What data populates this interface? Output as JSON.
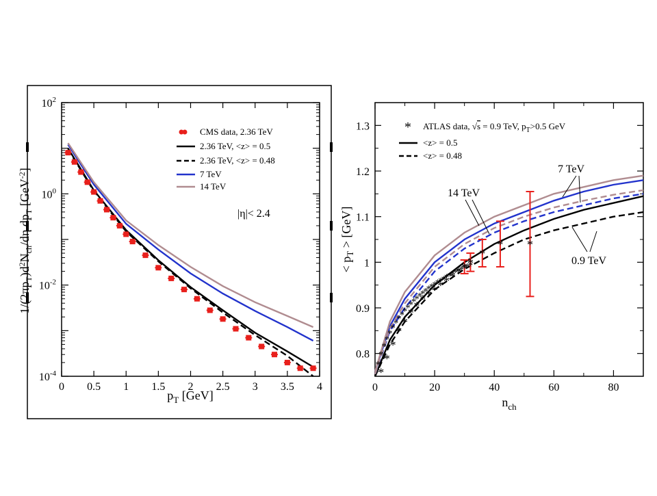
{
  "chart_data": [
    {
      "type": "line",
      "xlabel": "p_T [GeV]",
      "ylabel": "1/(2πp_T)d²N_ch/dη dp_T [GeV⁻²]",
      "xlim": [
        0,
        4
      ],
      "ylim": [
        0.0001,
        100
      ],
      "yscale": "log",
      "x_ticks": [
        "0",
        "0.5",
        "1",
        "1.5",
        "2",
        "2.5",
        "3",
        "3.5",
        "4"
      ],
      "y_ticks": [
        "10^-4",
        "10^-2",
        "10^0",
        "10^2"
      ],
      "annotation": "|η|< 2.4",
      "legend_position": "top-right",
      "legend": [
        {
          "label": "CMS data, 2.36 TeV",
          "color": "#e8201c",
          "style": "marker"
        },
        {
          "label": "2.36 TeV, <z> = 0.5",
          "color": "#000000",
          "style": "solid"
        },
        {
          "label": "2.36 TeV, <z> = 0.48",
          "color": "#000000",
          "style": "dashed"
        },
        {
          "label": "7 TeV",
          "color": "#2233cc",
          "style": "solid"
        },
        {
          "label": "14 TeV",
          "color": "#b08c90",
          "style": "solid"
        }
      ],
      "series": [
        {
          "name": "CMS data, 2.36 TeV",
          "kind": "points",
          "color": "#e8201c",
          "x": [
            0.1,
            0.2,
            0.3,
            0.4,
            0.5,
            0.6,
            0.7,
            0.8,
            0.9,
            1.0,
            1.1,
            1.3,
            1.5,
            1.7,
            1.9,
            2.1,
            2.3,
            2.5,
            2.7,
            2.9,
            3.1,
            3.3,
            3.5,
            3.7,
            3.9
          ],
          "y": [
            8,
            5,
            3,
            1.8,
            1.1,
            0.7,
            0.45,
            0.3,
            0.2,
            0.13,
            0.09,
            0.045,
            0.024,
            0.014,
            0.008,
            0.005,
            0.0028,
            0.0018,
            0.0011,
            0.0007,
            0.00045,
            0.0003,
            0.0002,
            0.00015,
            0.00015
          ]
        },
        {
          "name": "2.36 TeV, <z> = 0.5",
          "kind": "solid",
          "color": "#000000",
          "x": [
            0.1,
            0.5,
            1.0,
            1.5,
            2.0,
            2.5,
            3.0,
            3.5,
            3.9
          ],
          "y": [
            10,
            1.2,
            0.16,
            0.035,
            0.009,
            0.0028,
            0.0009,
            0.00035,
            0.00016
          ]
        },
        {
          "name": "2.36 TeV, <z> = 0.48",
          "kind": "dashed",
          "color": "#000000",
          "x": [
            0.1,
            0.5,
            1.0,
            1.5,
            2.0,
            2.5,
            3.0,
            3.5,
            3.9
          ],
          "y": [
            9.5,
            1.15,
            0.15,
            0.033,
            0.0085,
            0.0025,
            0.0008,
            0.00028,
            0.0001
          ]
        },
        {
          "name": "7 TeV",
          "kind": "solid",
          "color": "#2233cc",
          "x": [
            0.1,
            0.5,
            1.0,
            1.5,
            2.0,
            2.5,
            3.0,
            3.5,
            3.9
          ],
          "y": [
            12,
            1.6,
            0.22,
            0.06,
            0.018,
            0.0065,
            0.0027,
            0.0012,
            0.0006
          ]
        },
        {
          "name": "14 TeV",
          "kind": "solid",
          "color": "#b08c90",
          "x": [
            0.1,
            0.5,
            1.0,
            1.5,
            2.0,
            2.5,
            3.0,
            3.5,
            3.9
          ],
          "y": [
            13,
            1.8,
            0.26,
            0.075,
            0.025,
            0.0095,
            0.0042,
            0.0021,
            0.0012
          ]
        }
      ]
    },
    {
      "type": "line",
      "xlabel": "n_ch",
      "ylabel": "< p_T > [GeV]",
      "xlim": [
        0,
        90
      ],
      "ylim": [
        0.75,
        1.35
      ],
      "x_ticks": [
        "0",
        "20",
        "40",
        "60",
        "80"
      ],
      "y_ticks": [
        "0.8",
        "0.9",
        "1",
        "1.1",
        "1.2",
        "1.3"
      ],
      "annotations": [
        "7 TeV",
        "14 TeV",
        "0.9 TeV"
      ],
      "legend_position": "top-left",
      "legend": [
        {
          "label": "ATLAS data, √s = 0.9 TeV, p_T>0.5 GeV",
          "color": "#e8201c",
          "style": "marker"
        },
        {
          "label": "<z> = 0.5",
          "color": "#000000",
          "style": "solid"
        },
        {
          "label": "<z> = 0.48",
          "color": "#000000",
          "style": "dashed"
        }
      ],
      "series": [
        {
          "name": "ATLAS data, √s = 0.9 TeV, p_T>0.5 GeV",
          "kind": "points",
          "color": "#e8201c",
          "x": [
            2,
            4,
            6,
            8,
            10,
            12,
            14,
            16,
            18,
            20,
            22,
            24,
            26,
            28,
            30,
            32,
            36,
            42,
            52
          ],
          "y": [
            0.76,
            0.79,
            0.82,
            0.85,
            0.87,
            0.89,
            0.905,
            0.92,
            0.93,
            0.94,
            0.95,
            0.96,
            0.97,
            0.98,
            0.99,
            1.0,
            1.02,
            1.04,
            1.04
          ],
          "err": [
            0.01,
            0.01,
            0.01,
            0.01,
            0.01,
            0.01,
            0.01,
            0.01,
            0.01,
            0.01,
            0.01,
            0.01,
            0.01,
            0.01,
            0.015,
            0.02,
            0.03,
            0.05,
            0.115
          ]
        },
        {
          "name": "<z> = 0.5",
          "kind": "solid",
          "color": "#000000",
          "x": [
            0,
            5,
            10,
            20,
            30,
            40,
            50,
            60,
            70,
            80,
            90
          ],
          "y": [
            0.75,
            0.83,
            0.88,
            0.95,
            1.0,
            1.04,
            1.07,
            1.095,
            1.115,
            1.13,
            1.145
          ]
        },
        {
          "name": "<z> = 0.48",
          "kind": "dashed",
          "color": "#000000",
          "x": [
            0,
            5,
            10,
            20,
            30,
            40,
            50,
            60,
            70,
            80,
            90
          ],
          "y": [
            0.75,
            0.82,
            0.87,
            0.94,
            0.985,
            1.02,
            1.05,
            1.07,
            1.085,
            1.1,
            1.11
          ]
        },
        {
          "name": "7 TeV",
          "kind": "solid",
          "color": "#2233cc",
          "x": [
            0,
            5,
            10,
            20,
            30,
            40,
            50,
            60,
            70,
            80,
            90
          ],
          "y": [
            0.76,
            0.86,
            0.92,
            1.0,
            1.05,
            1.085,
            1.11,
            1.135,
            1.155,
            1.17,
            1.18
          ]
        },
        {
          "name": "7 TeV",
          "kind": "dashed",
          "color": "#2233cc",
          "x": [
            0,
            5,
            10,
            20,
            30,
            40,
            50,
            60,
            70,
            80,
            90
          ],
          "y": [
            0.755,
            0.85,
            0.9,
            0.98,
            1.03,
            1.065,
            1.09,
            1.11,
            1.125,
            1.14,
            1.15
          ]
        },
        {
          "name": "14 TeV",
          "kind": "solid",
          "color": "#b08c90",
          "x": [
            0,
            5,
            10,
            20,
            30,
            40,
            50,
            60,
            70,
            80,
            90
          ],
          "y": [
            0.76,
            0.87,
            0.935,
            1.015,
            1.065,
            1.1,
            1.125,
            1.15,
            1.165,
            1.18,
            1.19
          ]
        },
        {
          "name": "14 TeV",
          "kind": "dashed",
          "color": "#b08c90",
          "x": [
            0,
            5,
            10,
            20,
            30,
            40,
            50,
            60,
            70,
            80,
            90
          ],
          "y": [
            0.755,
            0.855,
            0.91,
            0.99,
            1.04,
            1.075,
            1.1,
            1.12,
            1.135,
            1.148,
            1.158
          ]
        }
      ]
    }
  ]
}
